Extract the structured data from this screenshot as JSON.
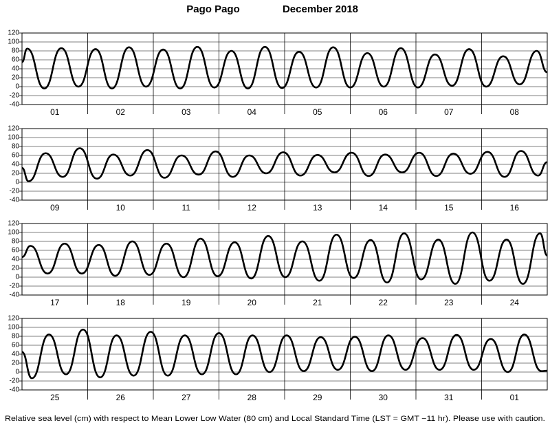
{
  "header": {
    "location": "Pago Pago",
    "period": "December 2018"
  },
  "footer": "Relative sea level (cm) with respect to Mean Lower Low Water (80 cm) and Local Standard Time (LST = GMT −11 hr). Please use with caution.",
  "chart_data": [
    {
      "type": "line",
      "xlim": [
        0,
        8
      ],
      "ylim": [
        -40,
        120
      ],
      "yticks": [
        -40,
        -20,
        0,
        20,
        40,
        60,
        80,
        100,
        120
      ],
      "grid": true,
      "xticks": [
        {
          "value": 0.5,
          "label": "01"
        },
        {
          "value": 1.5,
          "label": "02"
        },
        {
          "value": 2.5,
          "label": "03"
        },
        {
          "value": 3.5,
          "label": "04"
        },
        {
          "value": 4.5,
          "label": "05"
        },
        {
          "value": 5.5,
          "label": "06"
        },
        {
          "value": 6.5,
          "label": "07"
        },
        {
          "value": 7.5,
          "label": "08"
        }
      ],
      "series": [
        {
          "color": "#000000",
          "x": [
            0,
            0.08,
            0.34,
            0.6,
            0.86,
            1.12,
            1.37,
            1.63,
            1.89,
            2.15,
            2.41,
            2.67,
            2.93,
            3.19,
            3.44,
            3.7,
            3.96,
            4.22,
            4.48,
            4.74,
            5.0,
            5.26,
            5.51,
            5.77,
            6.03,
            6.29,
            6.55,
            6.81,
            7.07,
            7.33,
            7.58,
            7.84,
            8
          ],
          "values": [
            55,
            85,
            -4,
            86,
            0,
            84,
            -4,
            88,
            0,
            83,
            -4,
            89,
            -2,
            80,
            -4,
            89,
            -3,
            78,
            -2,
            88,
            -2,
            75,
            0,
            86,
            -2,
            72,
            2,
            84,
            0,
            68,
            5,
            80,
            32
          ]
        }
      ]
    },
    {
      "type": "line",
      "xlim": [
        0,
        8
      ],
      "ylim": [
        -40,
        120
      ],
      "yticks": [
        -40,
        -20,
        0,
        20,
        40,
        60,
        80,
        100,
        120
      ],
      "grid": true,
      "xticks": [
        {
          "value": 0.5,
          "label": "09"
        },
        {
          "value": 1.5,
          "label": "10"
        },
        {
          "value": 2.5,
          "label": "11"
        },
        {
          "value": 3.5,
          "label": "12"
        },
        {
          "value": 4.5,
          "label": "13"
        },
        {
          "value": 5.5,
          "label": "14"
        },
        {
          "value": 6.5,
          "label": "15"
        },
        {
          "value": 7.5,
          "label": "16"
        }
      ],
      "series": [
        {
          "color": "#000000",
          "x": [
            0,
            0.1,
            0.36,
            0.62,
            0.88,
            1.14,
            1.39,
            1.65,
            1.91,
            2.17,
            2.43,
            2.69,
            2.95,
            3.21,
            3.46,
            3.72,
            3.98,
            4.24,
            4.5,
            4.76,
            5.02,
            5.28,
            5.53,
            5.79,
            6.05,
            6.31,
            6.57,
            6.83,
            7.09,
            7.35,
            7.6,
            7.86,
            8
          ],
          "values": [
            32,
            2,
            65,
            12,
            76,
            8,
            62,
            15,
            72,
            10,
            60,
            17,
            69,
            12,
            60,
            20,
            67,
            15,
            61,
            22,
            66,
            14,
            62,
            22,
            66,
            14,
            64,
            19,
            68,
            12,
            70,
            15,
            45
          ]
        }
      ]
    },
    {
      "type": "line",
      "xlim": [
        0,
        8
      ],
      "ylim": [
        -40,
        120
      ],
      "yticks": [
        -40,
        -20,
        0,
        20,
        40,
        60,
        80,
        100,
        120
      ],
      "grid": true,
      "xticks": [
        {
          "value": 0.5,
          "label": "17"
        },
        {
          "value": 1.5,
          "label": "18"
        },
        {
          "value": 2.5,
          "label": "19"
        },
        {
          "value": 3.5,
          "label": "20"
        },
        {
          "value": 4.5,
          "label": "21"
        },
        {
          "value": 5.5,
          "label": "22"
        },
        {
          "value": 6.5,
          "label": "23"
        },
        {
          "value": 7.5,
          "label": "24"
        }
      ],
      "series": [
        {
          "color": "#000000",
          "x": [
            0,
            0.13,
            0.39,
            0.65,
            0.91,
            1.17,
            1.42,
            1.68,
            1.94,
            2.2,
            2.46,
            2.72,
            2.98,
            3.24,
            3.49,
            3.75,
            4.01,
            4.27,
            4.53,
            4.79,
            5.05,
            5.31,
            5.56,
            5.82,
            6.08,
            6.34,
            6.6,
            6.86,
            7.12,
            7.38,
            7.63,
            7.89,
            8
          ],
          "values": [
            45,
            70,
            8,
            75,
            8,
            72,
            3,
            80,
            5,
            75,
            0,
            86,
            2,
            78,
            -3,
            92,
            0,
            80,
            -8,
            95,
            -2,
            83,
            -12,
            98,
            -5,
            84,
            -15,
            100,
            -8,
            84,
            -15,
            98,
            48
          ]
        }
      ]
    },
    {
      "type": "line",
      "xlim": [
        0,
        8
      ],
      "ylim": [
        -40,
        120
      ],
      "yticks": [
        -40,
        -20,
        0,
        20,
        40,
        60,
        80,
        100,
        120
      ],
      "grid": true,
      "xticks": [
        {
          "value": 0.5,
          "label": "25"
        },
        {
          "value": 1.5,
          "label": "26"
        },
        {
          "value": 2.5,
          "label": "27"
        },
        {
          "value": 3.5,
          "label": "28"
        },
        {
          "value": 4.5,
          "label": "29"
        },
        {
          "value": 5.5,
          "label": "30"
        },
        {
          "value": 6.5,
          "label": "31"
        },
        {
          "value": 7.5,
          "label": "01"
        }
      ],
      "series": [
        {
          "color": "#000000",
          "x": [
            0,
            0.15,
            0.41,
            0.67,
            0.93,
            1.19,
            1.44,
            1.7,
            1.96,
            2.22,
            2.48,
            2.74,
            3.0,
            3.26,
            3.51,
            3.77,
            4.03,
            4.29,
            4.55,
            4.81,
            5.07,
            5.33,
            5.58,
            5.84,
            6.1,
            6.36,
            6.62,
            6.88,
            7.14,
            7.4,
            7.65,
            7.91,
            8
          ],
          "values": [
            45,
            -14,
            84,
            -5,
            95,
            -12,
            82,
            -8,
            90,
            -8,
            82,
            -5,
            87,
            -5,
            82,
            0,
            82,
            2,
            78,
            5,
            79,
            2,
            82,
            5,
            76,
            5,
            83,
            5,
            74,
            0,
            84,
            2,
            3
          ]
        }
      ]
    }
  ]
}
